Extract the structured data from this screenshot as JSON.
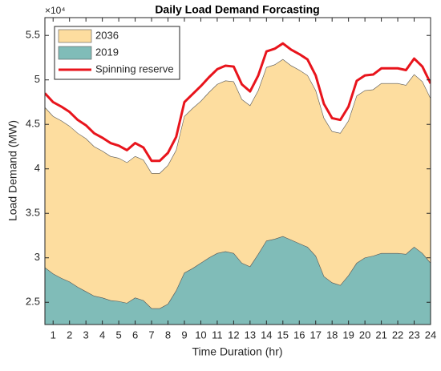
{
  "chart_data": {
    "type": "area",
    "title": "Daily Load Demand Forcasting",
    "xlabel": "Time Duration (hr)",
    "ylabel": "Load Demand (MW)",
    "y_exponent": "×10⁴",
    "x": [
      0.5,
      1,
      1.5,
      2,
      2.5,
      3,
      3.5,
      4,
      4.5,
      5,
      5.5,
      6,
      6.5,
      7,
      7.5,
      8,
      8.5,
      9,
      9.5,
      10,
      10.5,
      11,
      11.5,
      12,
      12.5,
      13,
      13.5,
      14,
      14.5,
      15,
      15.5,
      16,
      16.5,
      17,
      17.5,
      18,
      18.5,
      19,
      19.5,
      20,
      20.5,
      21,
      21.5,
      22,
      22.5,
      23,
      23.5,
      24
    ],
    "series": [
      {
        "name": "2036",
        "color": "#fddd9f",
        "kind": "area",
        "values": [
          46900,
          45900,
          45400,
          44800,
          44000,
          43400,
          42500,
          42000,
          41400,
          41200,
          40700,
          41400,
          41000,
          39500,
          39500,
          40400,
          42100,
          45900,
          46800,
          47600,
          48600,
          49500,
          49900,
          49800,
          47800,
          47100,
          48800,
          51400,
          51700,
          52300,
          51600,
          51100,
          50500,
          48800,
          45700,
          44200,
          44000,
          45400,
          48200,
          48800,
          48900,
          49600,
          49600,
          49600,
          49400,
          50600,
          49800,
          47900
        ]
      },
      {
        "name": "2019",
        "color": "#80bcb8",
        "kind": "area",
        "values": [
          28900,
          28200,
          27700,
          27300,
          26700,
          26200,
          25700,
          25500,
          25200,
          25100,
          24900,
          25500,
          25200,
          24300,
          24300,
          24800,
          26300,
          28300,
          28800,
          29400,
          30000,
          30500,
          30700,
          30500,
          29400,
          29000,
          30400,
          31900,
          32100,
          32400,
          32000,
          31600,
          31200,
          30200,
          27900,
          27200,
          26900,
          28000,
          29400,
          30000,
          30200,
          30500,
          30500,
          30500,
          30400,
          31200,
          30500,
          29400
        ]
      },
      {
        "name": "Spinning reserve",
        "color": "#e8141c",
        "kind": "line",
        "values": [
          48500,
          47500,
          47000,
          46400,
          45500,
          44900,
          44000,
          43500,
          42900,
          42600,
          42100,
          42900,
          42400,
          40900,
          40900,
          41800,
          43600,
          47500,
          48400,
          49300,
          50300,
          51200,
          51600,
          51500,
          49500,
          48700,
          50500,
          53200,
          53500,
          54100,
          53400,
          52900,
          52300,
          50500,
          47300,
          45700,
          45500,
          47000,
          49900,
          50500,
          50600,
          51300,
          51300,
          51300,
          51100,
          52400,
          51500,
          49600
        ]
      }
    ],
    "xlim": [
      0.5,
      24
    ],
    "xticks": [
      1,
      2,
      3,
      4,
      5,
      6,
      7,
      8,
      9,
      10,
      11,
      12,
      13,
      14,
      15,
      16,
      17,
      18,
      19,
      20,
      21,
      22,
      23,
      24
    ],
    "ylim": [
      22500,
      57000
    ],
    "yticks": [
      {
        "value": 25000,
        "label": "2.5"
      },
      {
        "value": 30000,
        "label": "3"
      },
      {
        "value": 35000,
        "label": "3.5"
      },
      {
        "value": 40000,
        "label": "4"
      },
      {
        "value": 45000,
        "label": "4.5"
      },
      {
        "value": 50000,
        "label": "5"
      },
      {
        "value": 55000,
        "label": "5.5"
      }
    ],
    "legend": "upper left",
    "grid": false
  }
}
